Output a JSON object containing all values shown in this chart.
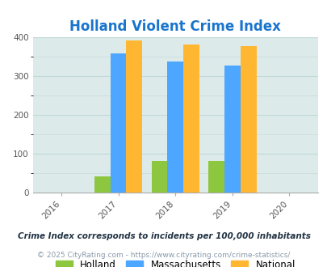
{
  "title": "Holland Violent Crime Index",
  "title_color": "#1874cd",
  "years": [
    2016,
    2017,
    2018,
    2019,
    2020
  ],
  "bar_years": [
    2017,
    2018,
    2019
  ],
  "holland": [
    42,
    80,
    80
  ],
  "massachusetts": [
    358,
    338,
    328
  ],
  "national": [
    393,
    382,
    378
  ],
  "color_holland": "#8dc63f",
  "color_massachusetts": "#4da6ff",
  "color_national": "#ffb732",
  "bg_plot": "#ddeaea",
  "bg_fig": "#ffffff",
  "ylim": [
    0,
    400
  ],
  "yticks": [
    0,
    100,
    200,
    300,
    400
  ],
  "grid_color": "#c0d8d8",
  "legend_labels": [
    "Holland",
    "Massachusetts",
    "National"
  ],
  "footnote1": "Crime Index corresponds to incidents per 100,000 inhabitants",
  "footnote2": "© 2025 CityRating.com - https://www.cityrating.com/crime-statistics/",
  "footnote1_color": "#223344",
  "footnote2_color": "#8899aa",
  "bar_width": 0.28,
  "xlim": [
    2015.5,
    2020.5
  ]
}
